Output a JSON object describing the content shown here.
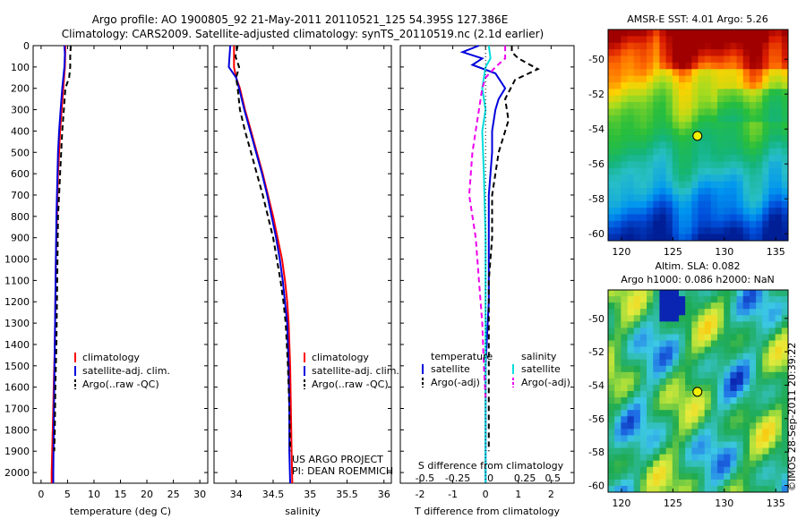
{
  "header": {
    "line1": "Argo profile: AO 1900805_92 21-May-2011 20110521_125 54.395S 127.386E",
    "line2": "Climatology: CARS2009. Satellite-adjusted climatology: synTS_20110519.nc (2.1d earlier)"
  },
  "credits": {
    "project": "US ARGO PROJECT",
    "pi": "PI: DEAN ROEMMICH",
    "stamp": "©IMOS 28-Sep-2011 20:39:22"
  },
  "colors": {
    "climatology": "#ff0000",
    "satellite": "#0000dd",
    "argo": "#000000",
    "salinity_sat": "#00dddd",
    "salinity_argo": "#ee00ee"
  },
  "chart_data": [
    {
      "type": "line",
      "panel": "temperature",
      "xlabel": "temperature (deg C)",
      "xlim": [
        -1.5,
        31.5
      ],
      "xticks": [
        0,
        5,
        10,
        15,
        20,
        25,
        30
      ],
      "ylim": [
        0,
        2050
      ],
      "yticks": [
        0,
        100,
        200,
        300,
        400,
        500,
        600,
        700,
        800,
        900,
        1000,
        1100,
        1200,
        1300,
        1400,
        1500,
        1600,
        1700,
        1800,
        1900,
        2000
      ],
      "y_reversed": true,
      "legend": [
        "climatology",
        "satellite-adj. clim.",
        "Argo(..raw -QC)"
      ],
      "series": [
        {
          "name": "climatology",
          "color": "#ff0000",
          "style": "solid",
          "x": [
            4.6,
            4.5,
            4.2,
            3.9,
            3.6,
            3.4,
            3.2,
            3.1,
            3.0,
            2.9,
            2.8,
            2.7,
            2.6,
            2.4,
            2.2,
            2.1,
            2.0,
            2.0
          ],
          "y": [
            0,
            100,
            200,
            300,
            400,
            500,
            600,
            700,
            800,
            900,
            1000,
            1200,
            1400,
            1600,
            1800,
            1900,
            2000,
            2050
          ]
        },
        {
          "name": "satellite-adj. clim.",
          "color": "#0000dd",
          "style": "solid",
          "x": [
            4.4,
            4.5,
            4.4,
            4.0,
            3.7,
            3.4,
            3.2,
            3.1,
            3.0,
            2.9,
            2.8,
            2.7,
            2.6,
            2.5,
            2.4,
            2.3,
            2.3
          ],
          "y": [
            0,
            40,
            100,
            200,
            300,
            400,
            500,
            600,
            700,
            800,
            1000,
            1200,
            1400,
            1600,
            1800,
            2000,
            2050
          ]
        },
        {
          "name": "Argo(..raw -QC)",
          "color": "#000000",
          "style": "dashed",
          "x": [
            5.6,
            5.5,
            5.5,
            5.3,
            4.6,
            4.3,
            4.0,
            3.8,
            3.6,
            3.4,
            3.2,
            3.1,
            3.0,
            2.9,
            2.7,
            2.6,
            2.5
          ],
          "y": [
            0,
            50,
            100,
            150,
            200,
            300,
            400,
            500,
            600,
            700,
            800,
            1000,
            1200,
            1400,
            1600,
            1800,
            1900
          ]
        }
      ]
    },
    {
      "type": "line",
      "panel": "salinity",
      "xlabel": "salinity",
      "xlim": [
        33.7,
        36.1
      ],
      "xticks": [
        34,
        34.5,
        35,
        35.5,
        36
      ],
      "ylim": [
        0,
        2050
      ],
      "y_reversed": true,
      "legend": [
        "climatology",
        "satellite-adj. clim.",
        "Argo(..raw -QC)"
      ],
      "series": [
        {
          "name": "climatology",
          "color": "#ff0000",
          "style": "solid",
          "x": [
            33.97,
            33.97,
            34.0,
            34.05,
            34.12,
            34.2,
            34.28,
            34.36,
            34.43,
            34.5,
            34.56,
            34.62,
            34.66,
            34.69,
            34.71,
            34.73,
            34.74,
            34.75,
            34.76
          ],
          "y": [
            0,
            100,
            150,
            200,
            300,
            400,
            500,
            600,
            700,
            800,
            900,
            1000,
            1100,
            1200,
            1300,
            1500,
            1700,
            1900,
            2050
          ]
        },
        {
          "name": "satellite-adj. clim.",
          "color": "#0000dd",
          "style": "solid",
          "x": [
            33.92,
            33.9,
            34.0,
            34.04,
            34.11,
            34.19,
            34.27,
            34.35,
            34.42,
            34.48,
            34.54,
            34.59,
            34.63,
            34.66,
            34.69,
            34.71,
            34.72,
            34.72,
            34.73
          ],
          "y": [
            0,
            100,
            150,
            200,
            300,
            400,
            500,
            600,
            700,
            800,
            900,
            1000,
            1100,
            1200,
            1300,
            1500,
            1700,
            1900,
            2050
          ]
        },
        {
          "name": "Argo(..raw -QC)",
          "color": "#000000",
          "style": "dashed",
          "x": [
            34.02,
            33.99,
            34.04,
            34.0,
            34.02,
            34.05,
            34.12,
            34.2,
            34.28,
            34.36,
            34.43,
            34.5,
            34.55,
            34.6,
            34.64,
            34.67,
            34.7,
            34.72,
            34.73
          ],
          "y": [
            0,
            50,
            100,
            150,
            200,
            300,
            400,
            500,
            600,
            700,
            800,
            900,
            1000,
            1100,
            1200,
            1300,
            1500,
            1700,
            1900
          ]
        }
      ]
    },
    {
      "type": "line",
      "panel": "difference",
      "xlabel": "T difference from climatology",
      "xlabel_top": "S difference from climatology",
      "xlim": [
        -2.6,
        2.7
      ],
      "xticks": [
        -2,
        -1,
        0,
        1,
        2
      ],
      "xticks_top": [
        "-0.5",
        "-0.25",
        "0",
        "0.25",
        "0.5"
      ],
      "xticks_top_at": [
        -1.85,
        -0.85,
        0.15,
        1.2,
        2.05
      ],
      "ylim": [
        0,
        2050
      ],
      "y_reversed": true,
      "legend_titles": [
        "temperature",
        "salinity"
      ],
      "legend": [
        "satellite",
        "Argo(-adj)",
        "satellite",
        "Argo(-adj)"
      ],
      "series": [
        {
          "name": "T satellite",
          "color": "#0000dd",
          "style": "solid",
          "x": [
            -0.2,
            -0.7,
            -0.1,
            -0.4,
            0.3,
            0.6,
            0.4,
            0.3,
            0.2,
            0.2,
            0.1,
            0.1,
            0.1,
            0.0,
            0.0,
            0.0,
            0.0
          ],
          "y": [
            0,
            30,
            60,
            90,
            130,
            200,
            250,
            300,
            400,
            500,
            700,
            900,
            1200,
            1500,
            1800,
            2000,
            2050
          ]
        },
        {
          "name": "T Argo(-adj)",
          "color": "#000000",
          "style": "dashed",
          "x": [
            0.8,
            0.8,
            1.0,
            1.6,
            0.9,
            0.6,
            0.7,
            0.4,
            0.3,
            0.2,
            0.2,
            0.1,
            0.1,
            0.1,
            0.1,
            0.1
          ],
          "y": [
            0,
            30,
            60,
            110,
            160,
            250,
            350,
            500,
            600,
            700,
            900,
            1100,
            1300,
            1500,
            1700,
            1900
          ]
        },
        {
          "name": "S satellite",
          "color": "#00dddd",
          "style": "solid",
          "x": [
            0.1,
            0.15,
            0.0,
            -0.1,
            0.0,
            -0.1,
            -0.05,
            0.0,
            0.0,
            0.0,
            0.0
          ],
          "y": [
            0,
            60,
            100,
            200,
            300,
            400,
            600,
            900,
            1300,
            1700,
            2050
          ]
        },
        {
          "name": "S Argo(-adj)",
          "color": "#ee00ee",
          "style": "dashed",
          "x": [
            0.6,
            0.6,
            0.3,
            0.0,
            -0.1,
            -0.2,
            -0.4,
            -0.5,
            -0.3,
            -0.2,
            -0.1,
            -0.05,
            0.0
          ],
          "y": [
            0,
            60,
            100,
            150,
            200,
            300,
            500,
            700,
            900,
            1100,
            1300,
            1500,
            1650
          ]
        },
        {
          "name": "zero",
          "color": "#000000",
          "style": "dotted",
          "x": [
            0,
            0
          ],
          "y": [
            0,
            2050
          ]
        }
      ]
    },
    {
      "type": "heatmap",
      "panel": "sst",
      "title": "AMSR-E SST: 4.01  Argo: 5.26",
      "xlim": [
        118.7,
        136.2
      ],
      "ylim": [
        -60.4,
        -48.3
      ],
      "xticks": [
        120,
        125,
        130,
        135
      ],
      "yticks": [
        -50,
        -52,
        -54,
        -56,
        -58,
        -60
      ],
      "marker": {
        "lon": 127.386,
        "lat": -54.395
      }
    },
    {
      "type": "heatmap",
      "panel": "sla",
      "title": "Altim. SLA: 0.082",
      "subtitle": "Argo h1000: 0.086 h2000: NaN",
      "xlim": [
        118.7,
        136.2
      ],
      "ylim": [
        -60.4,
        -48.3
      ],
      "xticks": [
        120,
        125,
        130,
        135
      ],
      "yticks": [
        -50,
        -52,
        -54,
        -56,
        -58,
        -60
      ],
      "marker": {
        "lon": 127.386,
        "lat": -54.395
      }
    }
  ]
}
